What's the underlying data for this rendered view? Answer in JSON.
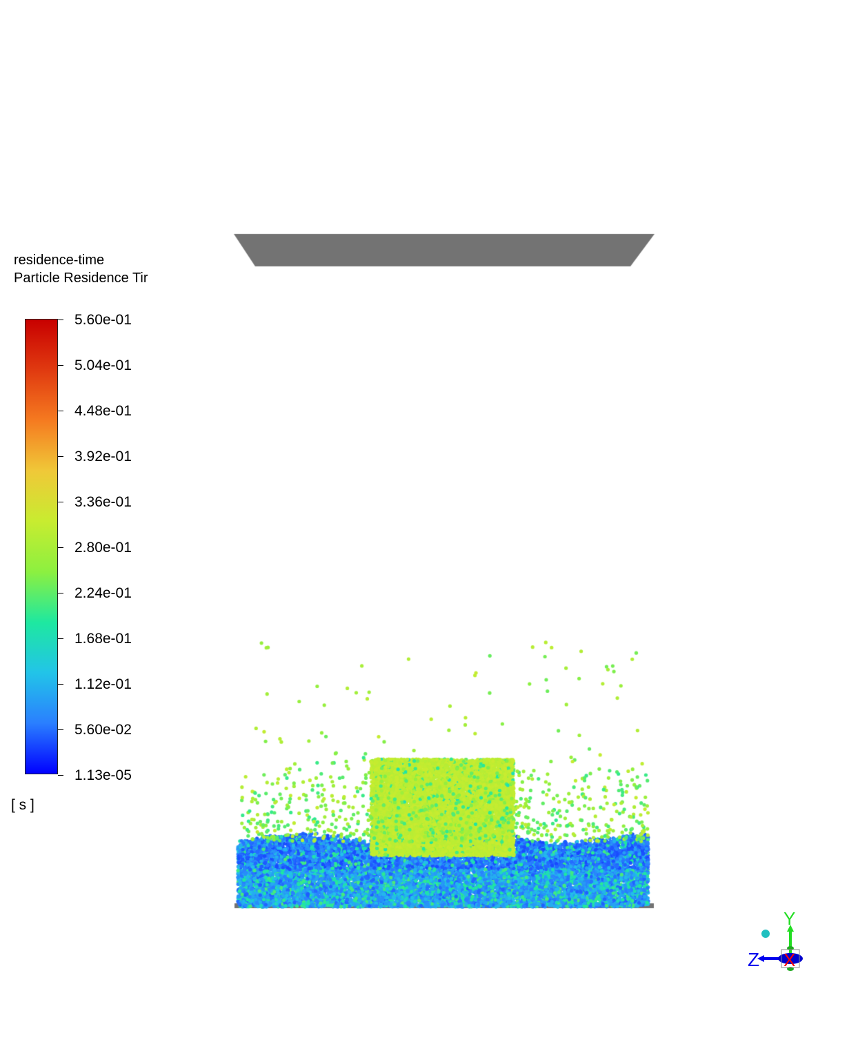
{
  "legend": {
    "title_line1": "residence-time",
    "title_line2": "Particle Residence Tir",
    "unit": "[ s ]",
    "ticks": [
      "5.60e-01",
      "5.04e-01",
      "4.48e-01",
      "3.92e-01",
      "3.36e-01",
      "2.80e-01",
      "2.24e-01",
      "1.68e-01",
      "1.12e-01",
      "5.60e-02",
      "1.13e-05"
    ],
    "min": 1.13e-05,
    "max": 0.56,
    "colormap": [
      "#0000ff",
      "#2a7fff",
      "#22c4e8",
      "#1ee8a0",
      "#8cf040",
      "#c8ec30",
      "#f0c838",
      "#f57a20",
      "#e03a10",
      "#c80000"
    ]
  },
  "geometry": {
    "wall_color": "#737373"
  },
  "triad": {
    "x_label": "X",
    "y_label": "Y",
    "z_label": "Z",
    "x_color": "#ff0000",
    "y_color": "#22dd22",
    "z_color": "#0000ee"
  }
}
